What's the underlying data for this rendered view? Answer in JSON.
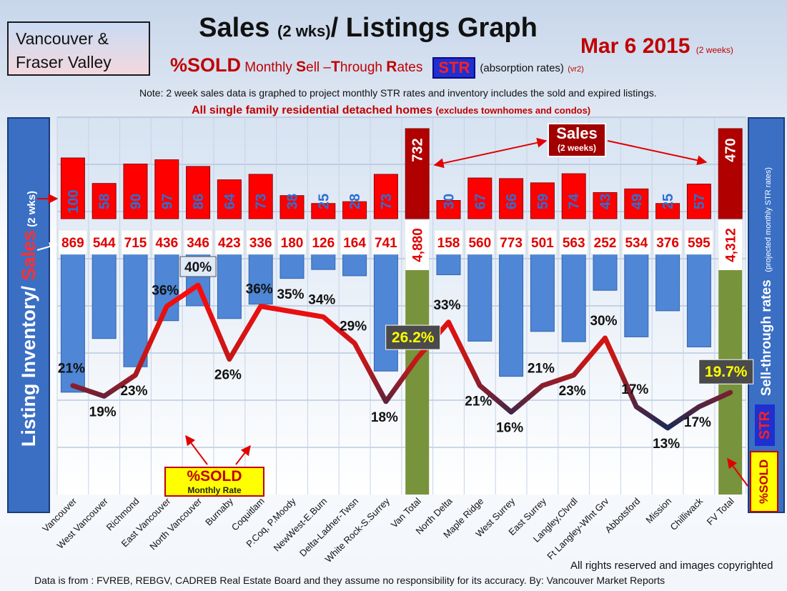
{
  "region": {
    "line1": "Vancouver &",
    "line2": "Fraser Valley"
  },
  "title": {
    "main": "Sales ",
    "paren": "(2 wks)",
    "rest": "/ Listings Graph"
  },
  "date": {
    "main": "Mar 6 2015",
    "note": "(2 weeks)"
  },
  "subtitle": {
    "pct_sold": "%SOLD",
    "monthly": " Monthly ",
    "s": "S",
    "ell": "ell –",
    "t": "T",
    "hrough": "hrough ",
    "r": "R",
    "ates": "ates",
    "str": "STR",
    "absorption": "(absorption rates)",
    "version": "(vr2)"
  },
  "note": "Note: 2 week sales data is graphed to project monthly STR rates and inventory includes the sold and expired listings.",
  "all_sf": {
    "main": "All single family residential detached homes ",
    "paren": "(excludes townhomes and condos)"
  },
  "left_axis": {
    "part1": "Listing Inventory/ ",
    "part2": "Sales",
    "part3": " (2 wks)"
  },
  "right_axis": {
    "main": "Sell-through rates",
    "note": "(projected monthly STR rates)",
    "str": "STR",
    "sold": "%SOLD"
  },
  "sold_badge": {
    "line1": "%SOLD",
    "line2": "Monthly Rate"
  },
  "sales_callout": {
    "line1": "Sales",
    "line2": "(2 weeks)"
  },
  "footer": {
    "rights": "All rights reserved and  images copyrighted",
    "source": "Data is from : FVREB, REBGV, CADREB Real Estate Board and they assume no responsibility for its accuracy. By: Vancouver Market Reports"
  },
  "colors": {
    "sales": "#ff0000",
    "inventory": "#4f86d6",
    "total": "#77933c",
    "pct_text": "#111111"
  },
  "chart_data": {
    "type": "bar",
    "categories": [
      "Vancouver",
      "West Vancouver",
      "Richmond",
      "East Vancouver",
      "North Vancouver",
      "Burnaby",
      "Coquitlam",
      "P.Coq, P.Moody",
      "NewWest-E.Burn",
      "Delta-Ladner-Twsn",
      "White Rock-S.Surrey",
      "Van Total",
      "North Delta",
      "Maple Ridge",
      "West Surrey",
      "East Surrey",
      "Langley,Clvrdl",
      "Ft Langley-Wlnt Grv",
      "Abbotsford",
      "Mission",
      "Chilliwack",
      "FV Total"
    ],
    "sales": [
      100,
      58,
      90,
      97,
      86,
      64,
      73,
      38,
      25,
      28,
      73,
      732,
      30,
      67,
      66,
      59,
      74,
      43,
      49,
      25,
      57,
      470
    ],
    "sales_labels": [
      "100",
      "58",
      "90",
      "97",
      "86",
      "64",
      "73",
      "38",
      "25",
      "28",
      "73",
      "732",
      "30",
      "67",
      "66",
      "59",
      "74",
      "43",
      "49",
      "25",
      "57",
      "470"
    ],
    "inventory": [
      869,
      544,
      715,
      436,
      346,
      423,
      336,
      180,
      126,
      164,
      741,
      4880,
      158,
      560,
      773,
      501,
      563,
      252,
      534,
      376,
      595,
      4312
    ],
    "inventory_labels": [
      "869",
      "544",
      "715",
      "436",
      "346",
      "423",
      "336",
      "180",
      "126",
      "164",
      "741",
      "4,880",
      "158",
      "560",
      "773",
      "501",
      "563",
      "252",
      "534",
      "376",
      "595",
      "4,312"
    ],
    "pct_sold": [
      21,
      19,
      23,
      36,
      40,
      26,
      36,
      35,
      34,
      29,
      18,
      26.2,
      33,
      21,
      16,
      21,
      23,
      30,
      17,
      13,
      17,
      19.7
    ],
    "pct_labels": [
      "21%",
      "19%",
      "23%",
      "36%",
      "40%",
      "26%",
      "36%",
      "35%",
      "34%",
      "29%",
      "18%",
      "26.2%",
      "33%",
      "21%",
      "16%",
      "21%",
      "23%",
      "30%",
      "17%",
      "13%",
      "17%",
      "19.7%"
    ],
    "totals": [
      "Van Total",
      "FV Total"
    ]
  }
}
